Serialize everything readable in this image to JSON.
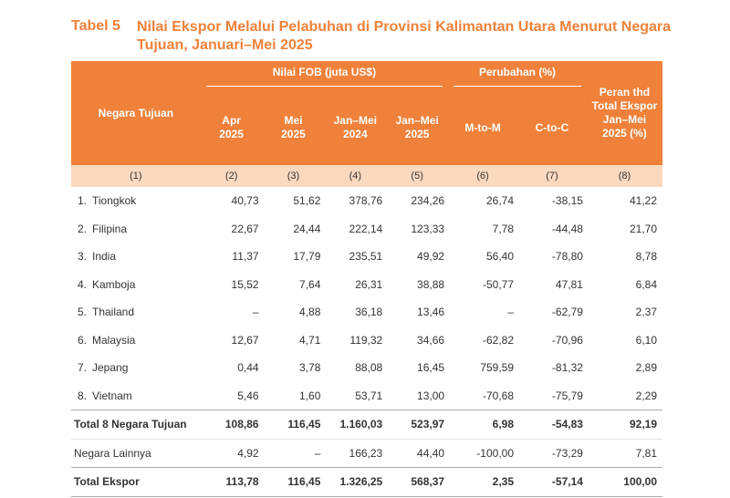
{
  "title": {
    "label": "Tabel 5",
    "text": "Nilai Ekspor Melalui Pelabuhan di Provinsi Kalimantan Utara Menurut Negara Tujuan, Januari–Mei 2025"
  },
  "header": {
    "country": "Negara Tujuan",
    "fob_group": "Nilai FOB (juta US$)",
    "change_group": "Perubahan (%)",
    "share": "Peran thd Total Ekspor Jan–Mei 2025 (%)",
    "apr": "Apr 2025",
    "mei": "Mei 2025",
    "janmei24": "Jan–Mei 2024",
    "janmei25": "Jan–Mei 2025",
    "mtom": "M-to-M",
    "ctoc": "C-to-C"
  },
  "colnums": [
    "(1)",
    "(2)",
    "(3)",
    "(4)",
    "(5)",
    "(6)",
    "(7)",
    "(8)"
  ],
  "rows": [
    {
      "no": "1.",
      "name": "Tiongkok",
      "v": [
        "40,73",
        "51,62",
        "378,76",
        "234,26",
        "26,74",
        "-38,15",
        "41,22"
      ]
    },
    {
      "no": "2.",
      "name": "Filipina",
      "v": [
        "22,67",
        "24,44",
        "222,14",
        "123,33",
        "7,78",
        "-44,48",
        "21,70"
      ]
    },
    {
      "no": "3.",
      "name": "India",
      "v": [
        "11,37",
        "17,79",
        "235,51",
        "49,92",
        "56,40",
        "-78,80",
        "8,78"
      ]
    },
    {
      "no": "4.",
      "name": "Kamboja",
      "v": [
        "15,52",
        "7,64",
        "26,31",
        "38,88",
        "-50,77",
        "47,81",
        "6,84"
      ]
    },
    {
      "no": "5.",
      "name": "Thailand",
      "v": [
        "–",
        "4,88",
        "36,18",
        "13,46",
        "–",
        "-62,79",
        "2,37"
      ]
    },
    {
      "no": "6.",
      "name": "Malaysia",
      "v": [
        "12,67",
        "4,71",
        "119,32",
        "34,66",
        "-62,82",
        "-70,96",
        "6,10"
      ]
    },
    {
      "no": "7.",
      "name": "Jepang",
      "v": [
        "0,44",
        "3,78",
        "88,08",
        "16,45",
        "759,59",
        "-81,32",
        "2,89"
      ]
    },
    {
      "no": "8.",
      "name": "Vietnam",
      "v": [
        "5,46",
        "1,60",
        "53,71",
        "13,00",
        "-70,68",
        "-75,79",
        "2,29"
      ]
    }
  ],
  "total8": {
    "name": "Total 8 Negara Tujuan",
    "v": [
      "108,86",
      "116,45",
      "1.160,03",
      "523,97",
      "6,98",
      "-54,83",
      "92,19"
    ]
  },
  "other": {
    "name": "Negara Lainnya",
    "v": [
      "4,92",
      "–",
      "166,23",
      "44,40",
      "-100,00",
      "-73,29",
      "7,81"
    ]
  },
  "total": {
    "name": "Total Ekspor",
    "v": [
      "113,78",
      "116,45",
      "1.326,25",
      "568,37",
      "2,35",
      "-57,14",
      "100,00"
    ]
  }
}
